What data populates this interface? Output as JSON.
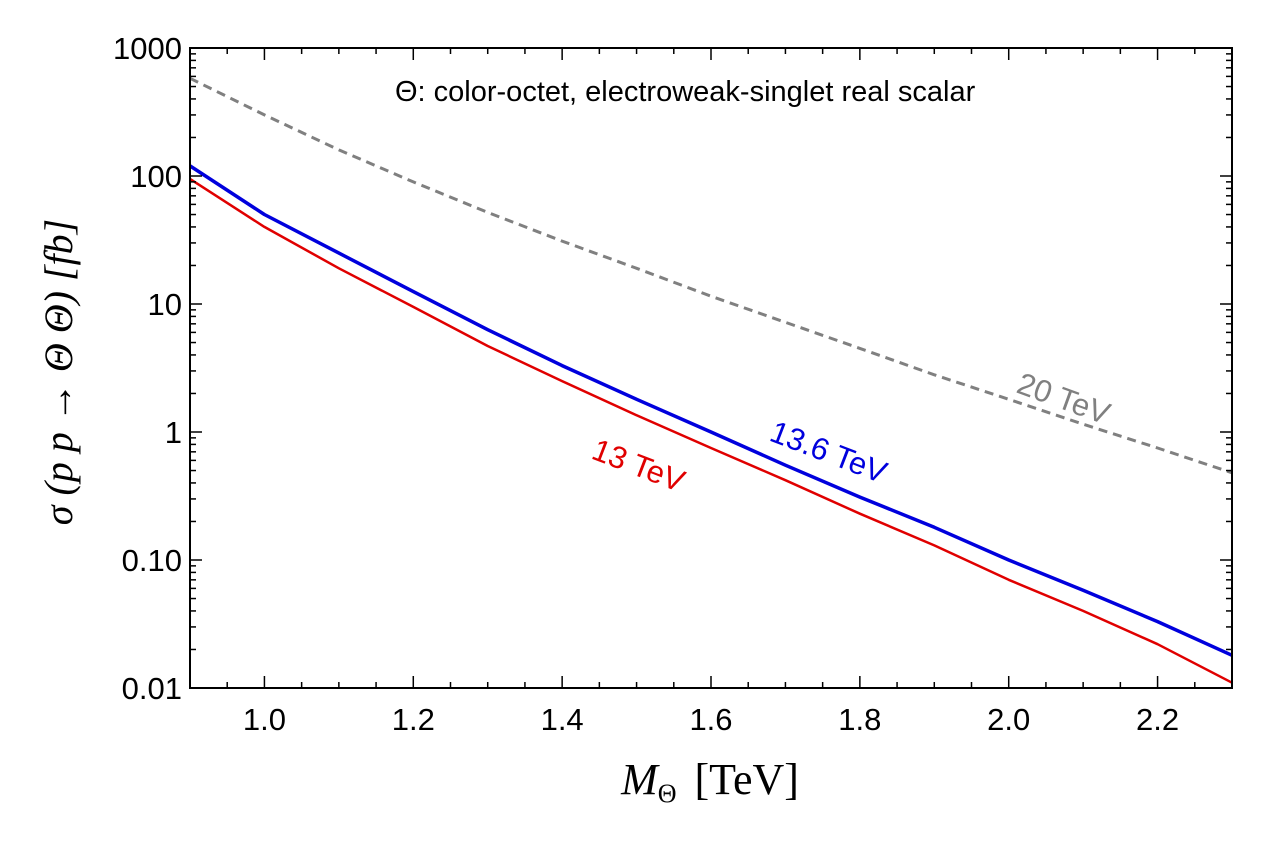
{
  "chart_data": {
    "type": "line",
    "title": "",
    "annotation": "Θ: color-octet, electroweak-singlet real scalar",
    "xlabel": {
      "main": "M",
      "sub": "Θ",
      "unit": "[TeV]"
    },
    "ylabel": "σ (p p → Θ Θ)  [fb]",
    "yscale": "log",
    "xlim": [
      0.9,
      2.3
    ],
    "ylim": [
      0.01,
      1000
    ],
    "x_ticks": [
      1.0,
      1.2,
      1.4,
      1.6,
      1.8,
      2.0,
      2.2
    ],
    "x_tick_labels": [
      "1.0",
      "1.2",
      "1.4",
      "1.6",
      "1.8",
      "2.0",
      "2.2"
    ],
    "y_ticks": [
      0.01,
      0.1,
      1,
      10,
      100,
      1000
    ],
    "y_tick_labels": [
      "0.01",
      "0.10",
      "1",
      "10",
      "100",
      "1000"
    ],
    "series": [
      {
        "name": "20 TeV",
        "label": "20  TeV",
        "color": "#808080",
        "style": "dashed",
        "x": [
          0.9,
          1.0,
          1.1,
          1.2,
          1.3,
          1.4,
          1.5,
          1.6,
          1.7,
          1.8,
          1.9,
          2.0,
          2.1,
          2.2,
          2.3
        ],
        "values": [
          580,
          300,
          160,
          90,
          52,
          31,
          19,
          11.5,
          7.2,
          4.5,
          2.8,
          1.8,
          1.15,
          0.75,
          0.48
        ]
      },
      {
        "name": "13.6 TeV",
        "label": "13.6  TeV",
        "color": "#0000dd",
        "style": "solid",
        "x": [
          0.9,
          1.0,
          1.1,
          1.2,
          1.3,
          1.4,
          1.5,
          1.6,
          1.7,
          1.8,
          1.9,
          2.0,
          2.1,
          2.2,
          2.3
        ],
        "values": [
          120,
          50,
          25,
          12.5,
          6.3,
          3.3,
          1.8,
          1.0,
          0.55,
          0.31,
          0.18,
          0.1,
          0.058,
          0.033,
          0.018
        ]
      },
      {
        "name": "13 TeV",
        "label": "13  TeV",
        "color": "#e00000",
        "style": "solid",
        "x": [
          0.9,
          1.0,
          1.1,
          1.2,
          1.3,
          1.4,
          1.5,
          1.6,
          1.7,
          1.8,
          1.9,
          2.0,
          2.1,
          2.2,
          2.3
        ],
        "values": [
          95,
          40,
          19,
          9.5,
          4.7,
          2.5,
          1.35,
          0.75,
          0.42,
          0.23,
          0.13,
          0.07,
          0.04,
          0.022,
          0.011
        ]
      }
    ]
  }
}
